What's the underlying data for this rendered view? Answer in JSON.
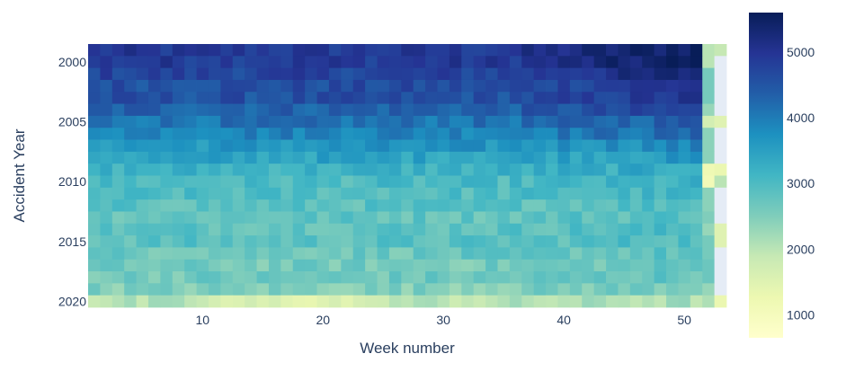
{
  "chart_data": {
    "type": "heatmap",
    "title": "",
    "xlabel": "Week number",
    "ylabel": "Accident Year",
    "x": [
      1,
      2,
      3,
      4,
      5,
      6,
      7,
      8,
      9,
      10,
      11,
      12,
      13,
      14,
      15,
      16,
      17,
      18,
      19,
      20,
      21,
      22,
      23,
      24,
      25,
      26,
      27,
      28,
      29,
      30,
      31,
      32,
      33,
      34,
      35,
      36,
      37,
      38,
      39,
      40,
      41,
      42,
      43,
      44,
      45,
      46,
      47,
      48,
      49,
      50,
      51,
      52,
      53
    ],
    "y": [
      1999,
      2000,
      2001,
      2002,
      2003,
      2004,
      2005,
      2006,
      2007,
      2008,
      2009,
      2010,
      2011,
      2012,
      2013,
      2014,
      2015,
      2016,
      2017,
      2018,
      2019,
      2020
    ],
    "xlim": [
      0.5,
      53.5
    ],
    "ylim": [
      2020.5,
      1998.5
    ],
    "x_ticks": [
      10,
      20,
      30,
      40,
      50
    ],
    "x_tick_labels": [
      "10",
      "20",
      "30",
      "40",
      "50"
    ],
    "y_ticks": [
      2000,
      2005,
      2010,
      2015,
      2020
    ],
    "y_tick_labels": [
      "2000",
      "2005",
      "2010",
      "2015",
      "2020"
    ],
    "year_levels": [
      4900,
      4900,
      4750,
      4600,
      4550,
      4350,
      4100,
      3950,
      3650,
      3450,
      3200,
      3000,
      2950,
      2850,
      2800,
      2850,
      2850,
      2700,
      2600,
      2650,
      2500,
      2000
    ],
    "year_levels_note_free": true,
    "week_amplitude_late_year": 500,
    "week52_values": [
      2000,
      2000,
      2600,
      2600,
      2600,
      2300,
      1700,
      2400,
      2400,
      2400,
      1200,
      1100,
      2400,
      2400,
      2500,
      2300,
      2600,
      2600,
      2700,
      2700,
      2300,
      2100
    ],
    "week53_values": [
      1900,
      null,
      null,
      null,
      null,
      null,
      1500,
      null,
      null,
      null,
      1300,
      2000,
      null,
      null,
      null,
      1500,
      1500,
      null,
      null,
      null,
      null,
      1300
    ],
    "missing_cell_color": "#E5ECF6",
    "colorscale": [
      [
        0.0,
        "#ffffcc"
      ],
      [
        0.125,
        "#edf8b1"
      ],
      [
        0.25,
        "#c7e9b4"
      ],
      [
        0.375,
        "#7fcdbb"
      ],
      [
        0.5,
        "#41b6c4"
      ],
      [
        0.625,
        "#1d91c0"
      ],
      [
        0.75,
        "#225ea8"
      ],
      [
        0.875,
        "#253494"
      ],
      [
        1.0,
        "#081d58"
      ]
    ],
    "zmin": 650,
    "zmax": 5600,
    "colorbar": {
      "ticks": [
        1000,
        2000,
        3000,
        4000,
        5000
      ],
      "tick_labels": [
        "1000",
        "2000",
        "3000",
        "4000",
        "5000"
      ]
    }
  }
}
